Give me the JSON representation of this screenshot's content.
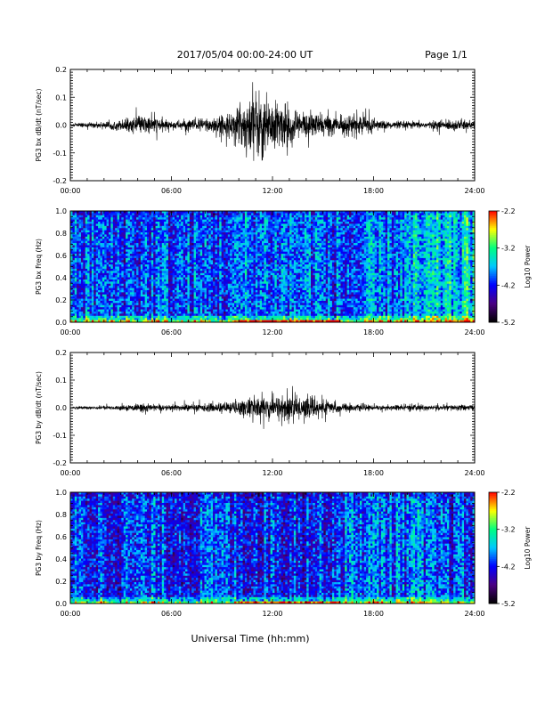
{
  "header": {
    "title": "2017/05/04  00:00-24:00 UT",
    "page": "Page 1/1"
  },
  "footer": {
    "xlabel": "Universal Time (hh:mm)"
  },
  "colormap": {
    "stops": [
      "#000000",
      "#4b0082",
      "#0000ff",
      "#00c8ff",
      "#00ff80",
      "#ffff00",
      "#ff0000"
    ],
    "background": "#ffffff",
    "axis_color": "#000000",
    "trace_color": "#000000"
  },
  "chart_data": [
    {
      "type": "line",
      "ylabel": "PG3 bx dB/dt (nT/sec)",
      "xlim": [
        0,
        24
      ],
      "ylim": [
        -0.2,
        0.2
      ],
      "yticks": [
        "0.2",
        "0.1",
        "0.0",
        "-0.1",
        "-0.2"
      ],
      "xticks": [
        "00:00",
        "06:00",
        "12:00",
        "18:00",
        "24:00"
      ],
      "grid": false,
      "series": [
        {
          "envelope_hours": [
            0,
            2,
            3.5,
            4.5,
            6,
            7.5,
            8.5,
            9.5,
            10,
            10.5,
            11,
            11.5,
            12,
            12.5,
            13,
            13.5,
            14,
            15,
            16,
            17,
            18,
            19,
            20,
            21,
            22,
            23,
            24
          ],
          "envelope_amplitude": [
            0.005,
            0.01,
            0.02,
            0.03,
            0.012,
            0.02,
            0.028,
            0.035,
            0.06,
            0.09,
            0.11,
            0.1,
            0.08,
            0.07,
            0.06,
            0.05,
            0.04,
            0.035,
            0.025,
            0.035,
            0.02,
            0.01,
            0.012,
            0.01,
            0.015,
            0.018,
            0.015
          ]
        }
      ]
    },
    {
      "type": "heatmap",
      "ylabel": "PG3 bx Freq (Hz)",
      "xlim": [
        0,
        24
      ],
      "ylim": [
        0,
        1.0
      ],
      "yticks": [
        "1.0",
        "0.8",
        "0.6",
        "0.4",
        "0.2",
        "0.0"
      ],
      "xticks": [
        "00:00",
        "06:00",
        "12:00",
        "18:00",
        "24:00"
      ],
      "colorbar": {
        "label": "Log10 Power",
        "range": [
          -5.2,
          -2.2
        ],
        "ticks": [
          "-2.2",
          "-3.2",
          "-4.2",
          "-5.2"
        ]
      }
    },
    {
      "type": "line",
      "ylabel": "PG3 by dB/dt (nT/sec)",
      "xlim": [
        0,
        24
      ],
      "ylim": [
        -0.2,
        0.2
      ],
      "yticks": [
        "0.2",
        "0.1",
        "0.0",
        "-0.1",
        "-0.2"
      ],
      "xticks": [
        "00:00",
        "06:00",
        "12:00",
        "18:00",
        "24:00"
      ],
      "grid": false,
      "series": [
        {
          "envelope_hours": [
            0,
            2,
            3.5,
            4.3,
            5,
            6,
            8,
            9.5,
            10,
            11,
            12,
            13,
            14,
            15,
            16,
            17,
            18,
            19,
            20,
            20.5,
            21,
            22,
            23,
            24
          ],
          "envelope_amplitude": [
            0.004,
            0.006,
            0.008,
            0.014,
            0.008,
            0.01,
            0.012,
            0.018,
            0.025,
            0.035,
            0.04,
            0.038,
            0.035,
            0.025,
            0.015,
            0.01,
            0.008,
            0.008,
            0.01,
            0.012,
            0.008,
            0.008,
            0.01,
            0.008
          ]
        }
      ]
    },
    {
      "type": "heatmap",
      "ylabel": "PG3 by Freq (Hz)",
      "xlim": [
        0,
        24
      ],
      "ylim": [
        0,
        1.0
      ],
      "yticks": [
        "1.0",
        "0.8",
        "0.6",
        "0.4",
        "0.2",
        "0.0"
      ],
      "xticks": [
        "00:00",
        "06:00",
        "12:00",
        "18:00",
        "24:00"
      ],
      "colorbar": {
        "label": "Log10 Power",
        "range": [
          -5.2,
          -2.2
        ],
        "ticks": [
          "-2.2",
          "-3.2",
          "-4.2",
          "-5.2"
        ]
      }
    }
  ]
}
